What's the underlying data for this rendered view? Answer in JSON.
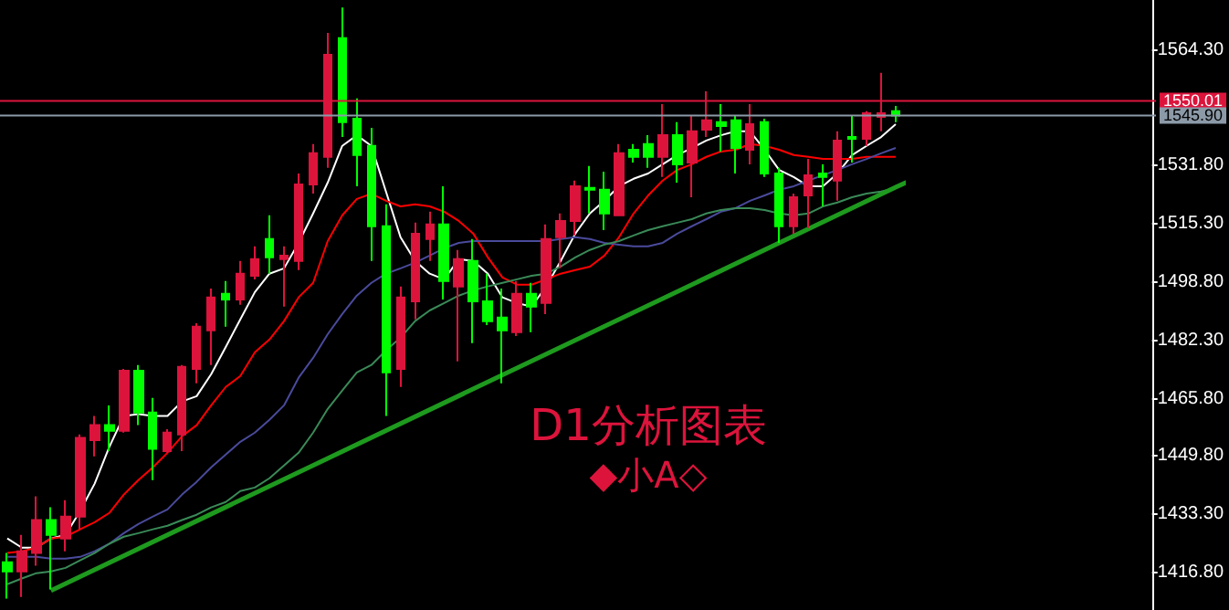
{
  "chart_data": {
    "type": "candlestick",
    "title": "D1分析图表",
    "subtitle": "◆小A◇",
    "categories": [
      null,
      null,
      null,
      null,
      null,
      null,
      null,
      null,
      null,
      null,
      null,
      null,
      null,
      null,
      null,
      null,
      null,
      null,
      null,
      null,
      null,
      null,
      null,
      null,
      null,
      null,
      null,
      null,
      null,
      null,
      null,
      null,
      null,
      null,
      null,
      null,
      null,
      null,
      null,
      null,
      null,
      null,
      null,
      null,
      null,
      null,
      null,
      null,
      null,
      null,
      null,
      null,
      null,
      null,
      null,
      null,
      null,
      null,
      null,
      null,
      null,
      null
    ],
    "ohlc": [
      [
        1419.7,
        1422.3,
        1409.4,
        1417.1
      ],
      [
        1417.1,
        1427.4,
        1409.9,
        1422.8
      ],
      [
        1422.3,
        1438.3,
        1418.7,
        1431.6
      ],
      [
        1431.6,
        1435.2,
        1412.0,
        1427.4
      ],
      [
        1426.4,
        1437.2,
        1422.8,
        1432.6
      ],
      [
        1432.6,
        1455.8,
        1429.0,
        1454.8
      ],
      [
        1454.2,
        1461.0,
        1449.6,
        1458.4
      ],
      [
        1458.4,
        1464.0,
        1451.1,
        1456.8
      ],
      [
        1456.8,
        1474.3,
        1456.3,
        1473.8
      ],
      [
        1473.8,
        1475.4,
        1458.4,
        1462.0
      ],
      [
        1462.0,
        1466.1,
        1442.9,
        1451.7
      ],
      [
        1451.1,
        1457.3,
        1450.6,
        1456.3
      ],
      [
        1455.8,
        1475.4,
        1451.1,
        1474.9
      ],
      [
        1474.3,
        1487.2,
        1470.2,
        1486.2
      ],
      [
        1485.2,
        1497.0,
        1475.4,
        1494.5
      ],
      [
        1495.5,
        1499.1,
        1486.2,
        1493.9
      ],
      [
        1493.9,
        1504.8,
        1492.4,
        1501.2
      ],
      [
        1500.6,
        1508.9,
        1499.6,
        1505.3
      ],
      [
        1511.0,
        1517.7,
        1501.2,
        1505.8
      ],
      [
        1505.3,
        1508.9,
        1491.9,
        1506.3
      ],
      [
        1504.8,
        1529.5,
        1502.2,
        1526.4
      ],
      [
        1526.4,
        1537.8,
        1523.8,
        1535.2
      ],
      [
        1534.2,
        1569.2,
        1531.1,
        1563.0
      ],
      [
        1567.7,
        1576.4,
        1539.8,
        1544.0
      ],
      [
        1545.0,
        1550.7,
        1525.9,
        1534.7
      ],
      [
        1537.3,
        1542.4,
        1504.8,
        1514.6
      ],
      [
        1514.6,
        1520.8,
        1461.0,
        1473.3
      ],
      [
        1474.3,
        1497.6,
        1469.2,
        1494.5
      ],
      [
        1493.4,
        1515.6,
        1488.3,
        1512.5
      ],
      [
        1511.0,
        1518.7,
        1504.8,
        1515.1
      ],
      [
        1515.1,
        1525.9,
        1493.9,
        1499.1
      ],
      [
        1497.6,
        1507.9,
        1476.4,
        1505.3
      ],
      [
        1504.8,
        1511.0,
        1481.6,
        1493.4
      ],
      [
        1493.4,
        1501.2,
        1486.7,
        1487.8
      ],
      [
        1488.8,
        1497.0,
        1470.2,
        1485.2
      ],
      [
        1484.7,
        1499.1,
        1483.6,
        1495.5
      ],
      [
        1495.5,
        1498.6,
        1484.7,
        1491.9
      ],
      [
        1492.9,
        1515.1,
        1489.8,
        1511.0
      ],
      [
        1511.5,
        1518.2,
        1502.7,
        1516.1
      ],
      [
        1516.1,
        1527.5,
        1512.0,
        1525.9
      ],
      [
        1525.4,
        1531.6,
        1518.2,
        1524.9
      ],
      [
        1524.9,
        1530.0,
        1513.5,
        1518.2
      ],
      [
        1517.7,
        1537.8,
        1517.7,
        1535.2
      ],
      [
        1536.2,
        1537.8,
        1532.6,
        1534.2
      ],
      [
        1537.8,
        1540.3,
        1531.1,
        1534.2
      ],
      [
        1534.2,
        1549.1,
        1528.5,
        1540.3
      ],
      [
        1540.3,
        1544.0,
        1526.9,
        1532.1
      ],
      [
        1532.6,
        1546.0,
        1522.8,
        1541.4
      ],
      [
        1541.9,
        1552.7,
        1539.8,
        1544.5
      ],
      [
        1544.0,
        1549.1,
        1535.7,
        1542.9
      ],
      [
        1544.5,
        1546.0,
        1529.5,
        1536.7
      ],
      [
        1536.2,
        1549.1,
        1532.1,
        1543.4
      ],
      [
        1544.0,
        1545.0,
        1528.5,
        1529.5
      ],
      [
        1529.5,
        1531.1,
        1509.9,
        1514.6
      ],
      [
        1514.6,
        1523.8,
        1512.5,
        1522.8
      ],
      [
        1523.3,
        1533.6,
        1514.1,
        1529.0
      ],
      [
        1529.5,
        1532.1,
        1520.2,
        1528.5
      ],
      [
        1527.5,
        1541.4,
        1521.8,
        1538.8
      ],
      [
        1539.8,
        1546.0,
        1532.6,
        1539.3
      ],
      [
        1539.3,
        1547.1,
        1537.3,
        1546.5
      ],
      [
        1545.5,
        1557.9,
        1541.4,
        1546.5
      ],
      [
        1547.1,
        1548.6,
        1544.0,
        1545.9
      ]
    ],
    "colors": [
      "#00ff00",
      "#dc143c",
      "#dc143c",
      "#00ff00",
      "#dc143c",
      "#dc143c",
      "#dc143c",
      "#00ff00",
      "#dc143c",
      "#00ff00",
      "#00ff00",
      "#dc143c",
      "#dc143c",
      "#dc143c",
      "#dc143c",
      "#00ff00",
      "#dc143c",
      "#dc143c",
      "#00ff00",
      "#dc143c",
      "#dc143c",
      "#dc143c",
      "#dc143c",
      "#00ff00",
      "#00ff00",
      "#00ff00",
      "#00ff00",
      "#dc143c",
      "#dc143c",
      "#dc143c",
      "#00ff00",
      "#dc143c",
      "#00ff00",
      "#00ff00",
      "#00ff00",
      "#dc143c",
      "#00ff00",
      "#dc143c",
      "#dc143c",
      "#dc143c",
      "#00ff00",
      "#00ff00",
      "#dc143c",
      "#00ff00",
      "#00ff00",
      "#dc143c",
      "#00ff00",
      "#dc143c",
      "#dc143c",
      "#00ff00",
      "#00ff00",
      "#dc143c",
      "#00ff00",
      "#00ff00",
      "#dc143c",
      "#dc143c",
      "#00ff00",
      "#dc143c",
      "#00ff00",
      "#dc143c",
      "#dc143c",
      "#00ff00"
    ],
    "series": [
      {
        "type": "line",
        "color": "#ffffff",
        "values": [
          1426.4,
          1423.8,
          1423.8,
          1426.4,
          1427.4,
          1434.1,
          1441.9,
          1452.2,
          1461.0,
          1461.5,
          1461.0,
          1461.0,
          1465.1,
          1466.6,
          1472.8,
          1480.5,
          1488.3,
          1496.0,
          1501.2,
          1502.7,
          1509.9,
          1518.2,
          1526.9,
          1537.3,
          1540.3,
          1537.3,
          1524.4,
          1511.5,
          1504.8,
          1501.2,
          1499.6,
          1505.3,
          1504.8,
          1501.2,
          1494.5,
          1492.9,
          1491.9,
          1497.6,
          1504.8,
          1512.5,
          1518.2,
          1521.8,
          1525.9,
          1528.0,
          1529.5,
          1532.1,
          1534.7,
          1536.7,
          1538.8,
          1540.3,
          1541.4,
          1541.4,
          1536.2,
          1530.5,
          1528.5,
          1525.9,
          1525.9,
          1529.5,
          1534.7,
          1537.3,
          1539.8,
          1543.4
        ]
      },
      {
        "type": "line",
        "color": "#ff0000",
        "values": [
          1422.3,
          1422.8,
          1423.8,
          1426.4,
          1426.9,
          1429.0,
          1431.0,
          1433.6,
          1438.8,
          1442.9,
          1446.5,
          1450.6,
          1455.3,
          1458.4,
          1464.0,
          1469.2,
          1472.3,
          1479.0,
          1482.6,
          1487.8,
          1494.5,
          1498.6,
          1510.4,
          1517.7,
          1522.3,
          1523.8,
          1521.8,
          1520.2,
          1520.8,
          1520.2,
          1518.7,
          1516.1,
          1512.5,
          1505.8,
          1500.1,
          1498.1,
          1498.1,
          1499.6,
          1501.2,
          1502.2,
          1503.2,
          1506.3,
          1511.5,
          1518.2,
          1523.3,
          1527.5,
          1530.5,
          1532.1,
          1534.2,
          1535.7,
          1536.2,
          1537.8,
          1537.3,
          1536.2,
          1534.7,
          1534.2,
          1533.6,
          1533.6,
          1533.6,
          1534.2,
          1534.2,
          1534.2
        ]
      },
      {
        "type": "line",
        "color": "#4a4a9c",
        "values": [
          1421.2,
          1421.2,
          1421.2,
          1420.7,
          1420.7,
          1421.2,
          1422.8,
          1424.9,
          1427.9,
          1430.5,
          1432.6,
          1434.6,
          1438.8,
          1442.4,
          1446.5,
          1450.1,
          1453.7,
          1456.3,
          1459.9,
          1464.0,
          1471.8,
          1477.4,
          1484.1,
          1489.8,
          1495.0,
          1498.6,
          1501.2,
          1502.7,
          1504.3,
          1506.3,
          1508.4,
          1509.9,
          1510.4,
          1510.4,
          1510.4,
          1510.4,
          1510.4,
          1510.4,
          1511.0,
          1511.5,
          1511.0,
          1509.9,
          1509.4,
          1508.9,
          1508.9,
          1509.9,
          1512.5,
          1514.6,
          1516.6,
          1518.7,
          1519.7,
          1521.8,
          1523.3,
          1524.9,
          1525.9,
          1527.5,
          1529.0,
          1530.5,
          1532.1,
          1533.6,
          1535.2,
          1536.7
        ]
      },
      {
        "type": "line",
        "color": "#3a8a58",
        "values": [
          1413.5,
          1415.1,
          1416.6,
          1417.1,
          1418.1,
          1420.2,
          1422.3,
          1424.9,
          1426.9,
          1427.9,
          1429.0,
          1430.0,
          1431.6,
          1433.1,
          1435.2,
          1436.7,
          1439.8,
          1440.8,
          1443.4,
          1447.0,
          1450.6,
          1456.3,
          1463.0,
          1468.2,
          1473.3,
          1475.4,
          1479.5,
          1483.1,
          1487.8,
          1490.8,
          1492.9,
          1495.0,
          1496.5,
          1497.6,
          1498.6,
          1499.6,
          1500.6,
          1501.2,
          1503.2,
          1505.8,
          1507.9,
          1509.4,
          1510.4,
          1512.0,
          1513.5,
          1514.6,
          1515.6,
          1516.6,
          1518.2,
          1519.2,
          1519.7,
          1519.7,
          1519.2,
          1518.2,
          1517.7,
          1518.2,
          1520.2,
          1521.3,
          1522.8,
          1523.8,
          1524.4,
          1525.4
        ]
      },
      {
        "type": "line",
        "color": "#1e9a1e",
        "values": [
          null,
          null,
          null,
          1411.7,
          null,
          null,
          null,
          null,
          null,
          null,
          null,
          null,
          null,
          null,
          null,
          null,
          null,
          null,
          null,
          null,
          null,
          null,
          null,
          null,
          null,
          null,
          null,
          null,
          null,
          null,
          null,
          null,
          null,
          null,
          null,
          null,
          null,
          null,
          null,
          null,
          null,
          null,
          null,
          null,
          null,
          null,
          null,
          null,
          null,
          null,
          null,
          null,
          null,
          null,
          null,
          null,
          null,
          null,
          null,
          null,
          null,
          1525.6
        ]
      }
    ],
    "ylim": [
      1406.2,
      1578.5
    ],
    "yticks": [
      {
        "value": 1416.8,
        "label": "1416.80"
      },
      {
        "value": 1433.3,
        "label": "1433.30"
      },
      {
        "value": 1449.8,
        "label": "1449.80"
      },
      {
        "value": 1465.8,
        "label": "1465.80"
      },
      {
        "value": 1482.3,
        "label": "1482.30"
      },
      {
        "value": 1498.8,
        "label": "1498.80"
      },
      {
        "value": 1515.3,
        "label": "1515.30"
      },
      {
        "value": 1531.8,
        "label": "1531.80"
      },
      {
        "value": 1564.3,
        "label": "1564.30"
      }
    ],
    "ref_lines": [
      {
        "axis": "y",
        "value": 1550.01,
        "label": "1550.01",
        "color": "#dc143c"
      },
      {
        "axis": "y",
        "value": 1545.9,
        "label": "1545.90",
        "color": "#8c9aa8"
      }
    ],
    "tick_labels": "y",
    "line_style": "solid",
    "grid": false
  }
}
